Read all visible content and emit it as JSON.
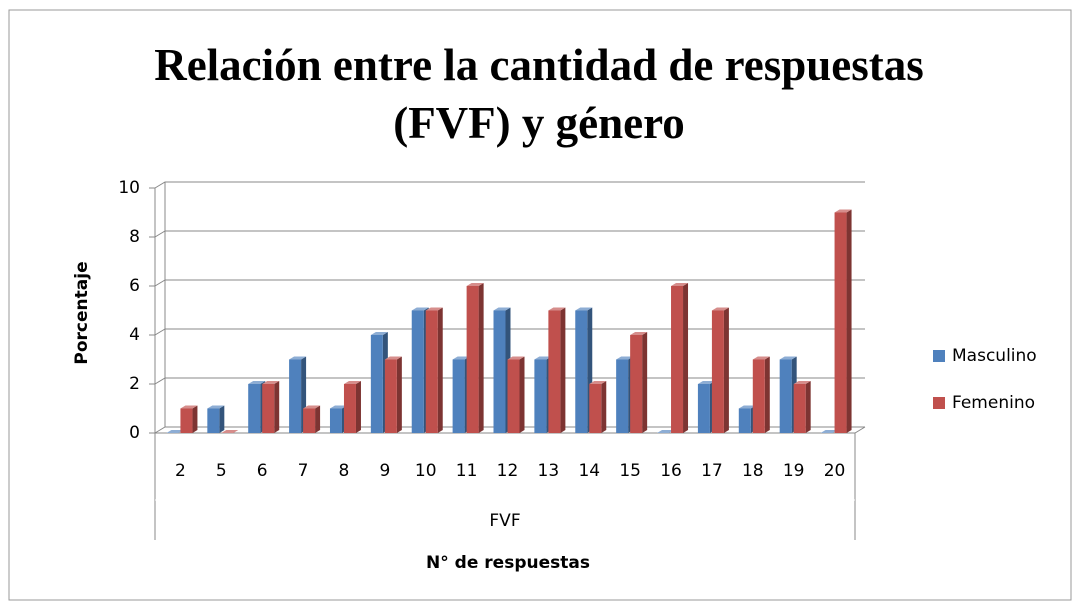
{
  "chart_data": {
    "type": "bar",
    "title": "Relación entre la cantidad de respuestas (FVF) y género",
    "ylabel": "Porcentaje",
    "group_label": "FVF",
    "xlabel": "N° de respuestas",
    "categories": [
      "2",
      "5",
      "6",
      "7",
      "8",
      "9",
      "10",
      "11",
      "12",
      "13",
      "14",
      "15",
      "16",
      "17",
      "18",
      "19",
      "20"
    ],
    "series": [
      {
        "name": "Masculino",
        "color": "#4f81bd",
        "values": [
          0,
          1,
          2,
          3,
          1,
          4,
          5,
          3,
          5,
          3,
          5,
          3,
          0,
          2,
          1,
          3,
          0
        ]
      },
      {
        "name": "Femenino",
        "color": "#c0504d",
        "values": [
          1,
          0,
          2,
          1,
          2,
          3,
          5,
          6,
          3,
          5,
          2,
          4,
          6,
          5,
          3,
          2,
          9
        ]
      }
    ],
    "ylim": [
      0,
      10
    ],
    "yticks": [
      0,
      2,
      4,
      6,
      8,
      10
    ],
    "grid": true,
    "legend": "right"
  }
}
